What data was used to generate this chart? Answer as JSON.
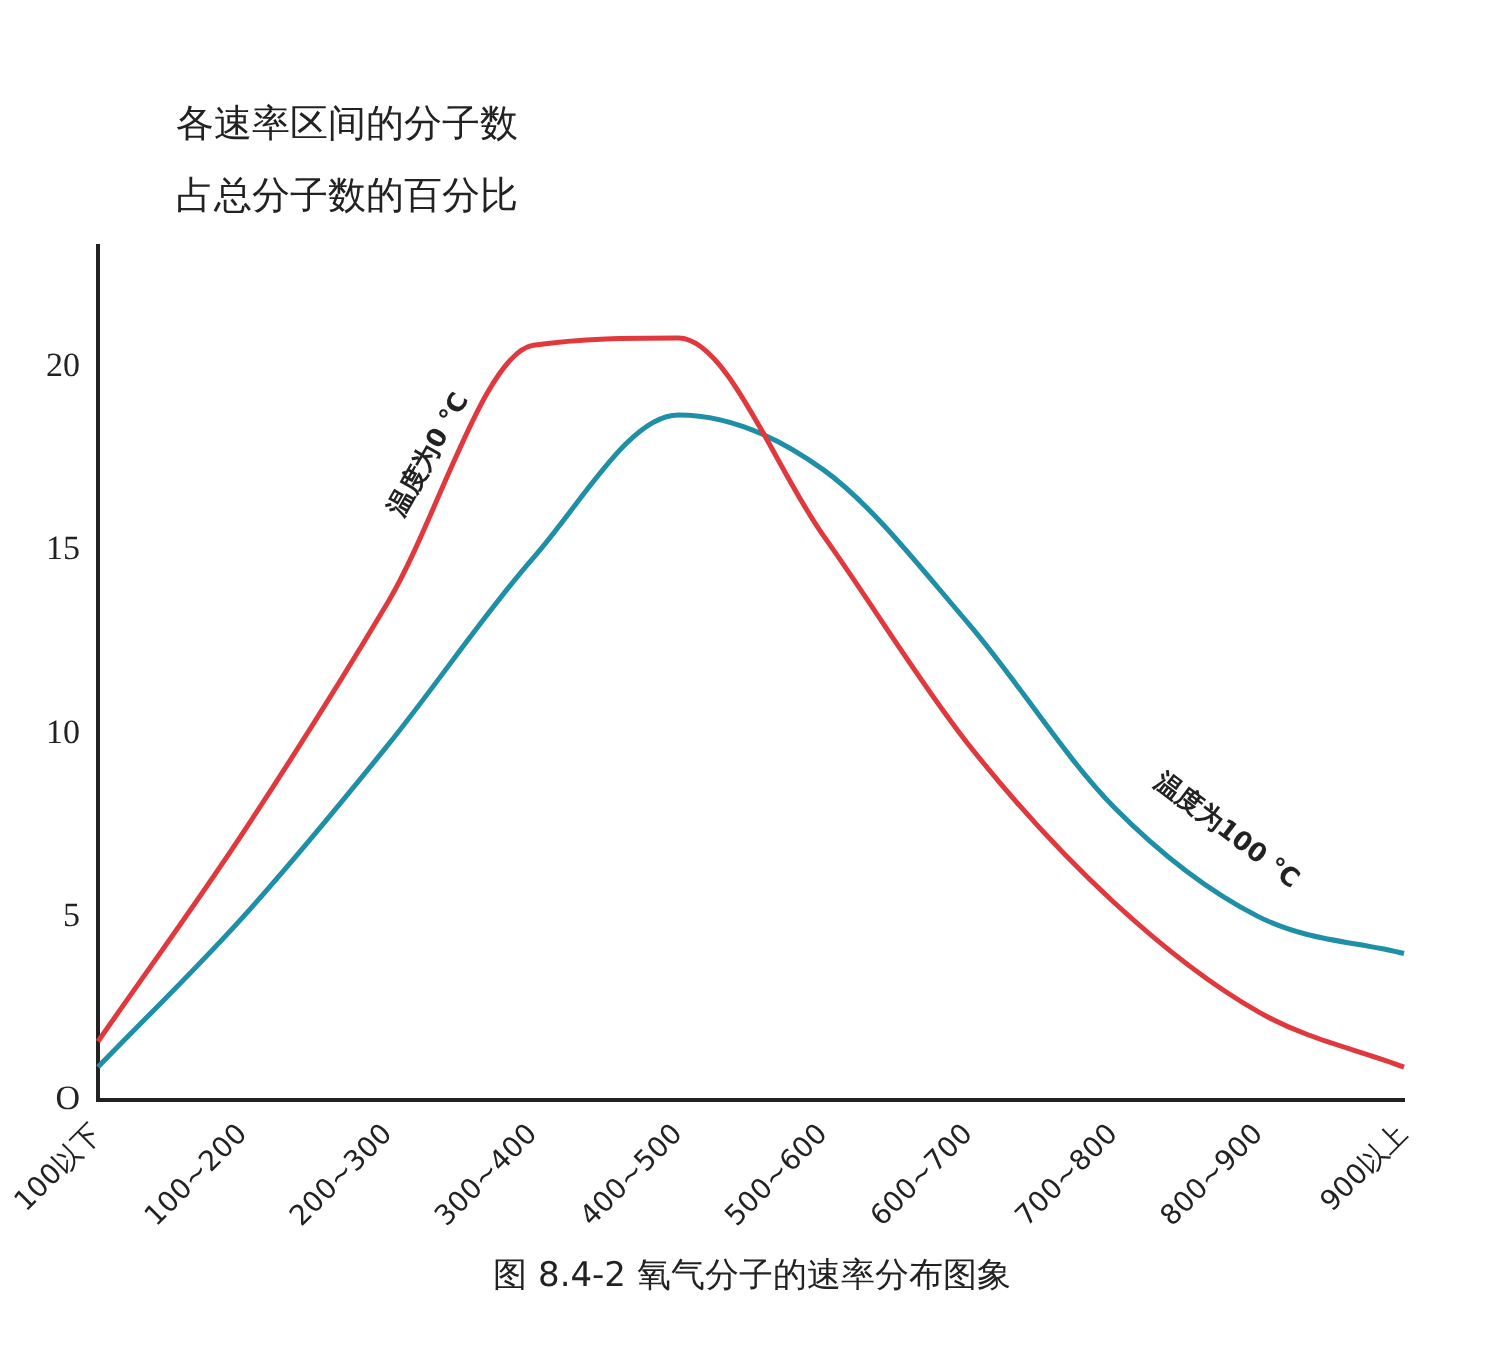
{
  "chart_data": {
    "type": "line",
    "ylabel": "各速率区间的分子数占总分子数的百分比",
    "categories": [
      "100以下",
      "100~200",
      "200~300",
      "300~400",
      "400~500",
      "500~600",
      "600~700",
      "700~800",
      "800~900",
      "900以上"
    ],
    "series": [
      {
        "name": "温度为0 ℃",
        "color": "#e0383c",
        "values": [
          1.6,
          7.3,
          13.6,
          20.6,
          20.8,
          15.4,
          9.7,
          5.4,
          2.4,
          0.9
        ]
      },
      {
        "name": "温度为100 ℃",
        "color": "#1e8fa6",
        "values": [
          0.9,
          5.0,
          9.7,
          14.8,
          18.7,
          17.2,
          13.0,
          8.0,
          5.0,
          4.0
        ]
      }
    ],
    "ylim": [
      0,
      23.3
    ],
    "yticks": [
      {
        "value": 0,
        "label": "O"
      },
      5,
      10,
      15,
      20
    ],
    "grid": false,
    "legend": false,
    "marker": "none",
    "line_style": "solid",
    "annotations": [
      "图 8.4-2  氧气分子的速率分布图象"
    ]
  }
}
